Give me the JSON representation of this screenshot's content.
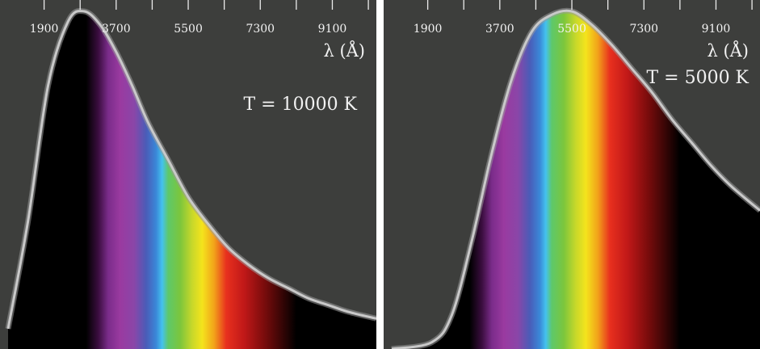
{
  "colors": {
    "background": "#3d3e3c",
    "divider": "#ffffff",
    "text": "#f2f2f2",
    "curve": "#c9c9c9",
    "ticks": "#ececec"
  },
  "chart_data": [
    {
      "type": "area",
      "xlabel": "λ (Å)",
      "temperature_label": "T = 10000 K",
      "temperature_K": 10000,
      "xticks": [
        1900,
        3700,
        5500,
        7300,
        9100
      ],
      "x_range": [
        1000,
        10200
      ],
      "curve": {
        "x": [
          1000,
          1500,
          2000,
          2500,
          2900,
          3300,
          3700,
          4100,
          4500,
          5000,
          5500,
          6000,
          6500,
          7000,
          7500,
          8000,
          8500,
          9000,
          9500,
          10200
        ],
        "y": [
          0.06,
          0.38,
          0.78,
          0.97,
          1.0,
          0.96,
          0.88,
          0.78,
          0.67,
          0.56,
          0.45,
          0.37,
          0.3,
          0.25,
          0.21,
          0.18,
          0.15,
          0.13,
          0.11,
          0.09
        ]
      },
      "y_range": [
        0,
        1.0
      ],
      "visible_band_Å": [
        2950,
        8200
      ]
    },
    {
      "type": "area",
      "xlabel": "λ (Å)",
      "temperature_label": "T = 5000 K",
      "temperature_K": 5000,
      "xticks": [
        1900,
        3700,
        5500,
        7300,
        9100
      ],
      "x_range": [
        1000,
        10200
      ],
      "curve": {
        "x": [
          1000,
          2000,
          2500,
          3000,
          3500,
          4000,
          4500,
          5000,
          5500,
          6000,
          6500,
          7000,
          7500,
          8000,
          8500,
          9000,
          9500,
          10200
        ],
        "y": [
          0.0,
          0.02,
          0.1,
          0.32,
          0.58,
          0.8,
          0.94,
          0.99,
          1.0,
          0.96,
          0.9,
          0.83,
          0.76,
          0.68,
          0.61,
          0.54,
          0.48,
          0.41
        ]
      },
      "y_range": [
        0,
        1.0
      ],
      "visible_band_Å": [
        2950,
        8200
      ]
    }
  ]
}
